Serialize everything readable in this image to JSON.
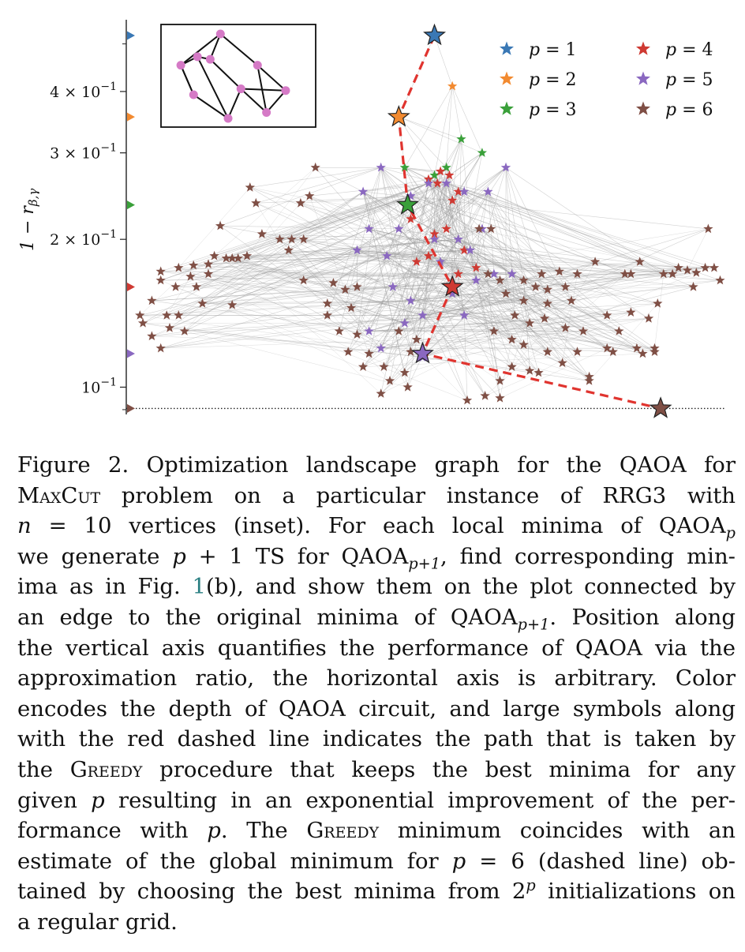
{
  "chart_data": {
    "type": "scatter",
    "title": "",
    "xlabel": "",
    "ylabel": "1 − r",
    "ylabel_subscript": "β,γ",
    "yscale": "log",
    "ylim": [
      0.088,
      0.56
    ],
    "xlim": [
      0,
      100
    ],
    "yticks": [
      {
        "value": 0.1,
        "mantissa": "",
        "exp": "−1"
      },
      {
        "value": 0.2,
        "mantissa": "2 × ",
        "exp": "−1"
      },
      {
        "value": 0.3,
        "mantissa": "3 × ",
        "exp": "−1"
      },
      {
        "value": 0.4,
        "mantissa": "4 × ",
        "exp": "−1"
      }
    ],
    "legend_placement": "top-right",
    "grid": false,
    "global_min_line": 0.0905,
    "series": [
      {
        "name": "p = 1",
        "p_label": "p",
        "p_value": "= 1",
        "color": "#3a78b5",
        "points": [
          [
            51,
            0.52
          ]
        ]
      },
      {
        "name": "p = 2",
        "p_label": "p",
        "p_value": "= 2",
        "color": "#f28a30",
        "points": [
          [
            45,
            0.355
          ],
          [
            54,
            0.41
          ]
        ]
      },
      {
        "name": "p = 3",
        "p_label": "p",
        "p_value": "= 3",
        "color": "#3aa03a",
        "points": [
          [
            46,
            0.28
          ],
          [
            51,
            0.27
          ],
          [
            53,
            0.28
          ],
          [
            55.5,
            0.32
          ],
          [
            59,
            0.3
          ]
        ]
      },
      {
        "name": "p = 4",
        "p_label": "p",
        "p_value": "= 4",
        "color": "#cf3a33",
        "points": [
          [
            50,
            0.265
          ],
          [
            52,
            0.275
          ],
          [
            53.5,
            0.27
          ],
          [
            55,
            0.25
          ],
          [
            47,
            0.22
          ],
          [
            51,
            0.205
          ],
          [
            53,
            0.21
          ],
          [
            56,
            0.19
          ],
          [
            48,
            0.18
          ],
          [
            50,
            0.185
          ],
          [
            55,
            0.17
          ],
          [
            58,
            0.175
          ],
          [
            51.5,
            0.26
          ],
          [
            54,
            0.24
          ]
        ]
      },
      {
        "name": "p = 5",
        "p_label": "p",
        "p_value": "= 5",
        "color": "#8a68c0",
        "points": [
          [
            39,
            0.25
          ],
          [
            42,
            0.28
          ],
          [
            47,
            0.245
          ],
          [
            50,
            0.26
          ],
          [
            53,
            0.26
          ],
          [
            56,
            0.25
          ],
          [
            60,
            0.25
          ],
          [
            63,
            0.28
          ],
          [
            40,
            0.21
          ],
          [
            45,
            0.21
          ],
          [
            51,
            0.2
          ],
          [
            55,
            0.2
          ],
          [
            59,
            0.21
          ],
          [
            38,
            0.19
          ],
          [
            43,
            0.185
          ],
          [
            52,
            0.18
          ],
          [
            57,
            0.19
          ],
          [
            61,
            0.17
          ],
          [
            64,
            0.17
          ],
          [
            44,
            0.16
          ],
          [
            47,
            0.15
          ],
          [
            54,
            0.155
          ],
          [
            58,
            0.165
          ],
          [
            40,
            0.13
          ],
          [
            46,
            0.135
          ],
          [
            49,
            0.14
          ],
          [
            56,
            0.14
          ],
          [
            42,
            0.12
          ],
          [
            49,
            0.115
          ]
        ]
      },
      {
        "name": "p = 6",
        "p_label": "p",
        "p_value": "= 6",
        "color": "#7f4f45",
        "points": [
          [
            31,
            0.28
          ],
          [
            20,
            0.255
          ],
          [
            21,
            0.237
          ],
          [
            15,
            0.213
          ],
          [
            28.5,
            0.237
          ],
          [
            30,
            0.245
          ],
          [
            22,
            0.205
          ],
          [
            25,
            0.2
          ],
          [
            27,
            0.2
          ],
          [
            29,
            0.2
          ],
          [
            26.5,
            0.19
          ],
          [
            14,
            0.185
          ],
          [
            16,
            0.183
          ],
          [
            17,
            0.183
          ],
          [
            18,
            0.183
          ],
          [
            19.5,
            0.185
          ],
          [
            13,
            0.178
          ],
          [
            10.5,
            0.177
          ],
          [
            8,
            0.175
          ],
          [
            5,
            0.172
          ],
          [
            10,
            0.168
          ],
          [
            13,
            0.17
          ],
          [
            5,
            0.165
          ],
          [
            7.5,
            0.16
          ],
          [
            11,
            0.16
          ],
          [
            29,
            0.165
          ],
          [
            34,
            0.163
          ],
          [
            36,
            0.158
          ],
          [
            38,
            0.16
          ],
          [
            3.5,
            0.15
          ],
          [
            12,
            0.148
          ],
          [
            17,
            0.147
          ],
          [
            33,
            0.148
          ],
          [
            37,
            0.145
          ],
          [
            1.5,
            0.14
          ],
          [
            6,
            0.14
          ],
          [
            8,
            0.14
          ],
          [
            2,
            0.135
          ],
          [
            6.5,
            0.132
          ],
          [
            9,
            0.13
          ],
          [
            3.5,
            0.127
          ],
          [
            5,
            0.12
          ],
          [
            35,
            0.13
          ],
          [
            33,
            0.14
          ],
          [
            38,
            0.128
          ],
          [
            36.5,
            0.118
          ],
          [
            40,
            0.117
          ],
          [
            39,
            0.11
          ],
          [
            42.5,
            0.11
          ],
          [
            43.5,
            0.103
          ],
          [
            42,
            0.097
          ],
          [
            46,
            0.107
          ],
          [
            46.5,
            0.1
          ],
          [
            47,
            0.118
          ],
          [
            48,
            0.125
          ],
          [
            45,
            0.13
          ],
          [
            56.5,
            0.094
          ],
          [
            60,
            0.17
          ],
          [
            62,
            0.165
          ],
          [
            60.5,
            0.21
          ],
          [
            58.5,
            0.21
          ],
          [
            66,
            0.165
          ],
          [
            68,
            0.16
          ],
          [
            70,
            0.158
          ],
          [
            73,
            0.16
          ],
          [
            63,
            0.155
          ],
          [
            66,
            0.15
          ],
          [
            70,
            0.148
          ],
          [
            74,
            0.15
          ],
          [
            64.5,
            0.14
          ],
          [
            67,
            0.135
          ],
          [
            69.5,
            0.138
          ],
          [
            73,
            0.132
          ],
          [
            76,
            0.13
          ],
          [
            80,
            0.14
          ],
          [
            84,
            0.142
          ],
          [
            87,
            0.138
          ],
          [
            61,
            0.13
          ],
          [
            64,
            0.125
          ],
          [
            66,
            0.122
          ],
          [
            70,
            0.118
          ],
          [
            75,
            0.118
          ],
          [
            80,
            0.12
          ],
          [
            85,
            0.12
          ],
          [
            88,
            0.118
          ],
          [
            72.5,
            0.112
          ],
          [
            77,
            0.105
          ],
          [
            81,
            0.118
          ],
          [
            86,
            0.117
          ],
          [
            77,
            0.103
          ],
          [
            67,
            0.108
          ],
          [
            62,
            0.103
          ],
          [
            64,
            0.11
          ],
          [
            62,
            0.095
          ],
          [
            88.5,
            0.148
          ],
          [
            88,
            0.12
          ],
          [
            89.5,
            0.17
          ],
          [
            91,
            0.17
          ],
          [
            92,
            0.175
          ],
          [
            93.5,
            0.173
          ],
          [
            95,
            0.171
          ],
          [
            96.5,
            0.175
          ],
          [
            98,
            0.175
          ],
          [
            99,
            0.165
          ],
          [
            94.5,
            0.16
          ],
          [
            83,
            0.17
          ],
          [
            85.5,
            0.18
          ],
          [
            78,
            0.18
          ],
          [
            84,
            0.17
          ],
          [
            72,
            0.172
          ],
          [
            75,
            0.17
          ],
          [
            69,
            0.17
          ],
          [
            97,
            0.21
          ],
          [
            59.5,
            0.096
          ],
          [
            68.5,
            0.107
          ],
          [
            82,
            0.13
          ]
        ]
      }
    ],
    "greedy_path": [
      {
        "p": 1,
        "x": 51,
        "y": 0.52
      },
      {
        "p": 2,
        "x": 45,
        "y": 0.355
      },
      {
        "p": 3,
        "x": 46.5,
        "y": 0.235
      },
      {
        "p": 4,
        "x": 54,
        "y": 0.16
      },
      {
        "p": 5,
        "x": 49,
        "y": 0.117
      },
      {
        "p": 6,
        "x": 89,
        "y": 0.0905
      }
    ],
    "axis_markers": [
      {
        "p": 1,
        "y": 0.52
      },
      {
        "p": 2,
        "y": 0.355
      },
      {
        "p": 3,
        "y": 0.235
      },
      {
        "p": 4,
        "y": 0.16
      },
      {
        "p": 5,
        "y": 0.117
      },
      {
        "p": 6,
        "y": 0.0905
      }
    ],
    "inset_graph": {
      "nodes": [
        [
          0.36,
          0.0
        ],
        [
          0.18,
          0.27
        ],
        [
          0.05,
          0.37
        ],
        [
          0.28,
          0.3
        ],
        [
          0.65,
          0.37
        ],
        [
          0.15,
          0.72
        ],
        [
          0.52,
          0.65
        ],
        [
          0.87,
          0.67
        ],
        [
          0.72,
          0.93
        ],
        [
          0.42,
          1.0
        ]
      ],
      "edges": [
        [
          0,
          2
        ],
        [
          0,
          3
        ],
        [
          0,
          4
        ],
        [
          1,
          2
        ],
        [
          1,
          3
        ],
        [
          1,
          9
        ],
        [
          2,
          5
        ],
        [
          3,
          6
        ],
        [
          4,
          7
        ],
        [
          4,
          8
        ],
        [
          5,
          9
        ],
        [
          6,
          7
        ],
        [
          6,
          8
        ],
        [
          6,
          9
        ],
        [
          7,
          8
        ],
        [
          5,
          2
        ]
      ]
    }
  },
  "caption": {
    "fig_label": "Figure 2.",
    "lines": [
      [
        "Figure 2.  Optimization landscape graph for the QAOA for"
      ],
      [
        "MaxCut",
        " problem on a particular instance of RRG3 with"
      ],
      [
        "n",
        " = 10 vertices (inset).  For each local minima of QAOA",
        "p"
      ],
      [
        "we generate ",
        "p",
        " + 1 TS for QAOA",
        "p+1",
        ", find corresponding min-"
      ],
      [
        "ima as in Fig. ",
        "1",
        "(b), and show them on the plot connected by"
      ],
      [
        "an edge to the original minima of QAOA",
        "p+1",
        ".  Position along"
      ],
      [
        "the vertical axis quantifies the performance of QAOA via the"
      ],
      [
        "approximation ratio, the horizontal axis is arbitrary.  Color"
      ],
      [
        "encodes the depth of QAOA circuit, and large symbols along"
      ],
      [
        "with the red dashed line indicates the path that is taken by"
      ],
      [
        "the ",
        "Greedy",
        " procedure that keeps the best minima for any"
      ],
      [
        "given ",
        "p",
        " resulting in an exponential improvement of the per-"
      ],
      [
        "formance with ",
        "p",
        ".  The ",
        "Greedy",
        " minimum coincides with an"
      ],
      [
        "estimate of the global minimum for ",
        "p",
        " = 6 (dashed line) ob-"
      ],
      [
        "tained by choosing the best minima from 2",
        "p",
        " initializations on"
      ],
      [
        "a regular grid."
      ]
    ]
  }
}
